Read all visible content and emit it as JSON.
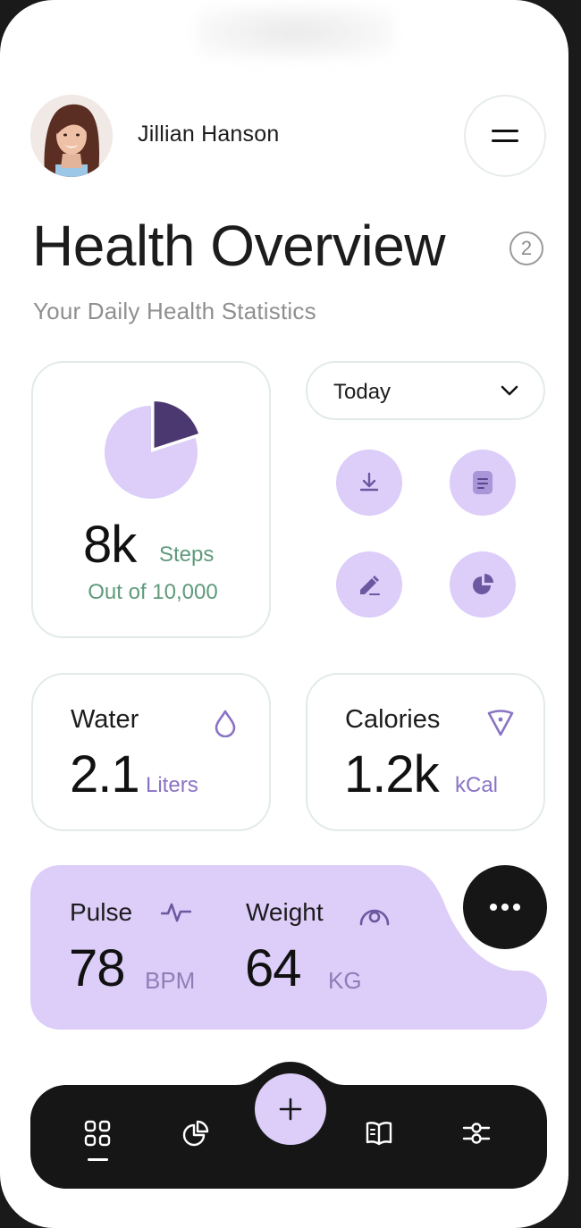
{
  "user": {
    "name": "Jillian Hanson"
  },
  "header": {
    "title": "Health Overview",
    "badge": "2",
    "subtitle": "Your Daily Health Statistics"
  },
  "steps": {
    "value": "8k",
    "unit": "Steps",
    "goal_text": "Out of 10,000",
    "progress_fraction": 0.8
  },
  "period": {
    "selected": "Today"
  },
  "actions": [
    {
      "icon": "download-icon"
    },
    {
      "icon": "document-icon"
    },
    {
      "icon": "pencil-icon"
    },
    {
      "icon": "pie-chart-icon"
    }
  ],
  "water": {
    "label": "Water",
    "value": "2.1",
    "unit": "Liters",
    "icon": "water-drop-icon"
  },
  "calories": {
    "label": "Calories",
    "value": "1.2k",
    "unit": "kCal",
    "icon": "pizza-slice-icon"
  },
  "pulse": {
    "label": "Pulse",
    "value": "78",
    "unit": "BPM",
    "icon": "pulse-icon"
  },
  "weight": {
    "label": "Weight",
    "value": "64",
    "unit": "KG",
    "icon": "scale-icon"
  },
  "nav": {
    "items": [
      "grid-icon",
      "pie-chart-icon",
      "add-icon",
      "book-icon",
      "sliders-icon"
    ],
    "active": "grid-icon"
  },
  "colors": {
    "accent": "#dccdf9",
    "accent_dark": "#4b3870",
    "green_text": "#5f9a7c",
    "purple_text": "#8a73c4",
    "dark": "#161616"
  }
}
